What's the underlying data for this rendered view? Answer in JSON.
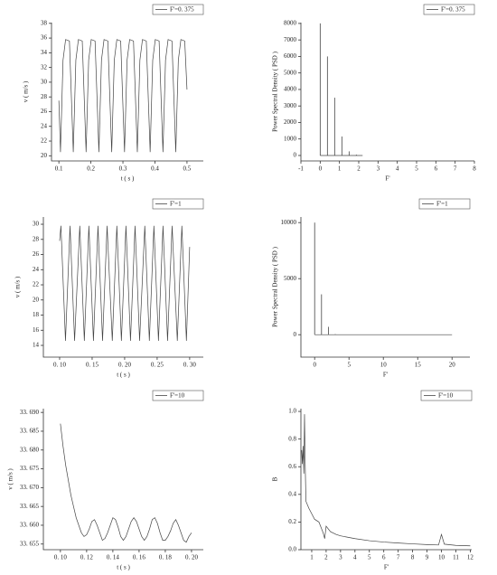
{
  "chart_data": [
    {
      "type": "line",
      "xlabel": "t ( s )",
      "ylabel": "v ( m/s )",
      "legend": "upper right",
      "xlim": [
        0.077,
        0.551
      ],
      "ylim": [
        19.3,
        38.1
      ],
      "xticks": [
        0.1,
        0.2,
        0.3,
        0.4,
        0.5
      ],
      "yticks": [
        20,
        22,
        24,
        26,
        28,
        30,
        32,
        34,
        36,
        38
      ],
      "x": [
        0.1,
        0.105,
        0.113,
        0.121,
        0.133,
        0.145,
        0.153,
        0.161,
        0.173,
        0.185,
        0.193,
        0.201,
        0.213,
        0.225,
        0.233,
        0.241,
        0.253,
        0.265,
        0.273,
        0.281,
        0.293,
        0.305,
        0.313,
        0.321,
        0.333,
        0.345,
        0.353,
        0.361,
        0.373,
        0.385,
        0.393,
        0.401,
        0.413,
        0.425,
        0.433,
        0.441,
        0.453,
        0.465,
        0.473,
        0.481,
        0.493,
        0.5
      ],
      "series": [
        {
          "name": "F'=0. 375",
          "color": "#444444",
          "values": [
            27.5,
            20.5,
            33,
            35.8,
            35.6,
            20.5,
            33,
            35.8,
            35.6,
            20.5,
            33,
            35.8,
            35.6,
            20.5,
            33,
            35.8,
            35.6,
            20.5,
            33,
            35.8,
            35.6,
            20.5,
            33,
            35.8,
            35.6,
            20.5,
            33,
            35.8,
            35.6,
            20.5,
            33,
            35.8,
            35.6,
            20.5,
            33,
            35.8,
            35.6,
            20.5,
            33,
            35.8,
            35.6,
            29
          ]
        }
      ]
    },
    {
      "type": "stem",
      "xlabel": "F'",
      "ylabel": "Power Spectral Density ( PSD )",
      "legend": "upper right",
      "xlim": [
        -1,
        8
      ],
      "ylim": [
        -330,
        8050
      ],
      "xticks": [
        -1,
        0,
        1,
        2,
        3,
        4,
        5,
        6,
        7,
        8
      ],
      "yticks": [
        0,
        1000,
        2000,
        3000,
        4000,
        5000,
        6000,
        7000,
        8000
      ],
      "x": [
        0,
        0.375,
        0.75,
        1.125,
        1.5,
        1.875,
        2.2
      ],
      "series": [
        {
          "name": "F'=0. 375",
          "color": "#444444",
          "values": [
            8000,
            6000,
            3500,
            1150,
            250,
            50,
            0
          ]
        }
      ]
    },
    {
      "type": "line",
      "xlabel": "t ( s )",
      "ylabel": "v ( m/s )",
      "legend": "upper right",
      "xlim": [
        0.075,
        0.321
      ],
      "ylim": [
        12.45,
        30.96
      ],
      "xticks": [
        {
          "value": 0.1,
          "label": "0. 10"
        },
        {
          "value": 0.15,
          "label": "0. 15"
        },
        {
          "value": 0.2,
          "label": "0. 20"
        },
        {
          "value": 0.25,
          "label": "0. 25"
        },
        {
          "value": 0.3,
          "label": "0. 30"
        }
      ],
      "yticks": [
        14,
        16,
        18,
        20,
        22,
        24,
        26,
        28,
        30
      ],
      "x": [
        0.1,
        0.102,
        0.109,
        0.116,
        0.123,
        0.131,
        0.138,
        0.145,
        0.152,
        0.159,
        0.166,
        0.173,
        0.181,
        0.188,
        0.195,
        0.202,
        0.209,
        0.216,
        0.223,
        0.231,
        0.238,
        0.245,
        0.252,
        0.259,
        0.266,
        0.273,
        0.281,
        0.288,
        0.295,
        0.3
      ],
      "series": [
        {
          "name": "F'=1",
          "color": "#444444",
          "values": [
            27.8,
            29.8,
            14.6,
            29.8,
            14.6,
            29.8,
            14.6,
            29.8,
            14.6,
            29.8,
            14.6,
            29.8,
            14.6,
            29.8,
            14.6,
            29.8,
            14.6,
            29.8,
            14.6,
            29.8,
            14.6,
            29.8,
            14.6,
            29.8,
            14.6,
            29.8,
            14.6,
            29.8,
            14.6,
            27
          ]
        }
      ]
    },
    {
      "type": "stem",
      "xlabel": "F'",
      "ylabel": "Power Spectral Density ( PSD )",
      "legend": "upper right",
      "xlim": [
        -2,
        22.6
      ],
      "ylim": [
        -2000,
        10500
      ],
      "xticks": [
        0,
        5,
        10,
        15,
        20
      ],
      "yticks": [
        0,
        5000,
        10000
      ],
      "x": [
        0,
        1,
        2,
        3,
        20
      ],
      "series": [
        {
          "name": "F'=1",
          "color": "#444444",
          "values": [
            10000,
            3600,
            700,
            50,
            0
          ]
        }
      ]
    },
    {
      "type": "line",
      "xlabel": "t ( s )",
      "ylabel": "v ( m/s )",
      "legend": "upper right",
      "xlim": [
        0.087,
        0.209
      ],
      "ylim": [
        33.6535,
        33.691
      ],
      "xticks": [
        {
          "value": 0.1,
          "label": "0. 10"
        },
        {
          "value": 0.12,
          "label": "0. 12"
        },
        {
          "value": 0.14,
          "label": "0. 14"
        },
        {
          "value": 0.16,
          "label": "0. 16"
        },
        {
          "value": 0.18,
          "label": "0. 18"
        },
        {
          "value": 0.2,
          "label": "0. 20"
        }
      ],
      "yticks": [
        {
          "value": 33.655,
          "label": "33. 655"
        },
        {
          "value": 33.66,
          "label": "33. 660"
        },
        {
          "value": 33.665,
          "label": "33. 665"
        },
        {
          "value": 33.67,
          "label": "33. 670"
        },
        {
          "value": 33.675,
          "label": "33. 675"
        },
        {
          "value": 33.68,
          "label": "33. 680"
        },
        {
          "value": 33.685,
          "label": "33. 685"
        },
        {
          "value": 33.69,
          "label": "33. 690"
        }
      ],
      "x": [
        0.1,
        0.102,
        0.104,
        0.106,
        0.108,
        0.11,
        0.112,
        0.114,
        0.116,
        0.118,
        0.12,
        0.122,
        0.124,
        0.126,
        0.128,
        0.13,
        0.132,
        0.134,
        0.136,
        0.138,
        0.14,
        0.142,
        0.144,
        0.146,
        0.148,
        0.15,
        0.152,
        0.154,
        0.156,
        0.158,
        0.16,
        0.162,
        0.164,
        0.166,
        0.168,
        0.17,
        0.172,
        0.174,
        0.176,
        0.178,
        0.18,
        0.182,
        0.184,
        0.186,
        0.188,
        0.19,
        0.192,
        0.194,
        0.196,
        0.198,
        0.2
      ],
      "series": [
        {
          "name": "F'=10",
          "color": "#444444",
          "values": [
            33.687,
            33.681,
            33.676,
            33.672,
            33.668,
            33.665,
            33.662,
            33.66,
            33.658,
            33.657,
            33.6575,
            33.659,
            33.661,
            33.6615,
            33.66,
            33.658,
            33.656,
            33.6565,
            33.658,
            33.66,
            33.662,
            33.6615,
            33.6595,
            33.657,
            33.656,
            33.657,
            33.659,
            33.661,
            33.662,
            33.661,
            33.659,
            33.657,
            33.656,
            33.657,
            33.659,
            33.6615,
            33.662,
            33.6605,
            33.658,
            33.656,
            33.656,
            33.657,
            33.6585,
            33.6605,
            33.6615,
            33.66,
            33.658,
            33.656,
            33.6555,
            33.657,
            33.658
          ]
        }
      ]
    },
    {
      "type": "line",
      "xlabel": "F'",
      "ylabel": "B",
      "legend": "upper right",
      "xlim": [
        0.25,
        12.1
      ],
      "ylim": [
        0,
        1.02
      ],
      "xticks": [
        1,
        2,
        3,
        4,
        5,
        6,
        7,
        8,
        9,
        10,
        11,
        12
      ],
      "yticks": [
        {
          "value": 0,
          "label": "0.0"
        },
        0.2,
        0.4,
        0.6,
        0.8,
        {
          "value": 1,
          "label": "1.0"
        }
      ],
      "x": [
        0.3,
        0.35,
        0.4,
        0.45,
        0.5,
        0.55,
        0.6,
        0.8,
        1.0,
        1.2,
        1.5,
        1.8,
        1.9,
        2.0,
        2.3,
        2.7,
        3,
        3.5,
        4,
        5,
        6,
        7,
        8,
        9,
        9.8,
        10,
        10.2,
        11,
        12
      ],
      "series": [
        {
          "name": "F'=10",
          "color": "#444444",
          "values": [
            0.72,
            0.62,
            0.75,
            0.55,
            0.98,
            0.6,
            0.35,
            0.3,
            0.26,
            0.22,
            0.2,
            0.12,
            0.08,
            0.17,
            0.13,
            0.11,
            0.1,
            0.09,
            0.08,
            0.065,
            0.055,
            0.048,
            0.042,
            0.037,
            0.034,
            0.11,
            0.04,
            0.031,
            0.028
          ]
        }
      ]
    }
  ]
}
